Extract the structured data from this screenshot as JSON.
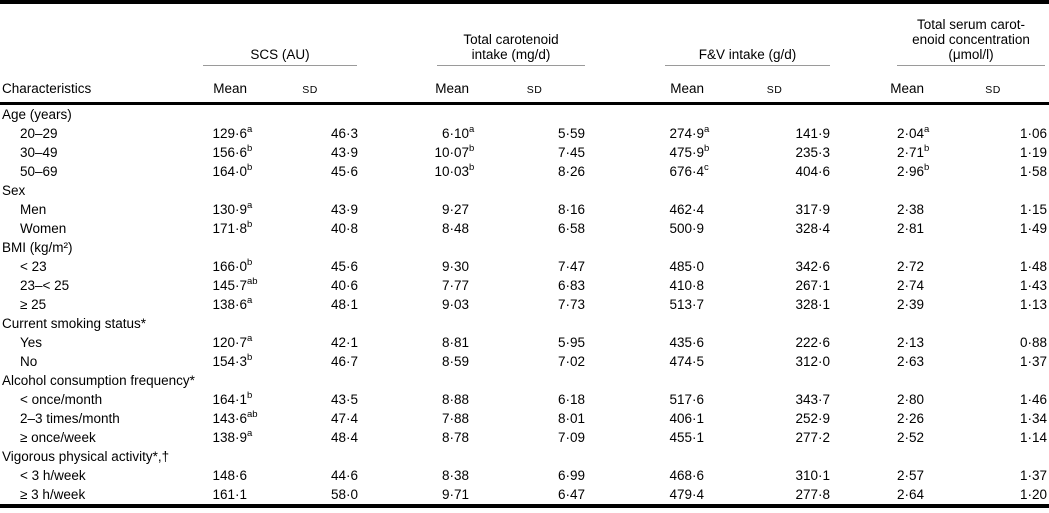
{
  "colors": {
    "text": "#000000",
    "heavy_rule": "#000000",
    "group_rule": "#9a9a9a",
    "background": "#ffffff"
  },
  "table": {
    "row_header": "Characteristics",
    "col_groups": [
      {
        "name": "scs",
        "lines": [
          "SCS (AU)"
        ]
      },
      {
        "name": "total-carotenoid-intake",
        "lines": [
          "Total carotenoid",
          "intake (mg/d)"
        ]
      },
      {
        "name": "fv-intake",
        "lines": [
          "F&V intake (g/d)"
        ]
      },
      {
        "name": "total-serum-carotenoid-concentration",
        "lines": [
          "Total serum carot-",
          "enoid concentration",
          "(μmol/l)"
        ]
      }
    ],
    "sub_headers": {
      "mean": "Mean",
      "sd": "SD"
    },
    "sections": [
      {
        "label": "Age (years)",
        "rows": [
          {
            "label": "20–29",
            "cells": [
              {
                "v": "129·6",
                "s": "a"
              },
              {
                "v": "46·3"
              },
              {
                "v": "6·10",
                "s": "a"
              },
              {
                "v": "5·59"
              },
              {
                "v": "274·9",
                "s": "a"
              },
              {
                "v": "141·9"
              },
              {
                "v": "2·04",
                "s": "a"
              },
              {
                "v": "1·06"
              }
            ]
          },
          {
            "label": "30–49",
            "cells": [
              {
                "v": "156·6",
                "s": "b"
              },
              {
                "v": "43·9"
              },
              {
                "v": "10·07",
                "s": "b"
              },
              {
                "v": "7·45"
              },
              {
                "v": "475·9",
                "s": "b"
              },
              {
                "v": "235·3"
              },
              {
                "v": "2·71",
                "s": "b"
              },
              {
                "v": "1·19"
              }
            ]
          },
          {
            "label": "50–69",
            "cells": [
              {
                "v": "164·0",
                "s": "b"
              },
              {
                "v": "45·6"
              },
              {
                "v": "10·03",
                "s": "b"
              },
              {
                "v": "8·26"
              },
              {
                "v": "676·4",
                "s": "c"
              },
              {
                "v": "404·6"
              },
              {
                "v": "2·96",
                "s": "b"
              },
              {
                "v": "1·58"
              }
            ]
          }
        ]
      },
      {
        "label": "Sex",
        "rows": [
          {
            "label": "Men",
            "cells": [
              {
                "v": "130·9",
                "s": "a"
              },
              {
                "v": "43·9"
              },
              {
                "v": "9·27"
              },
              {
                "v": "8·16"
              },
              {
                "v": "462·4"
              },
              {
                "v": "317·9"
              },
              {
                "v": "2·38"
              },
              {
                "v": "1·15"
              }
            ]
          },
          {
            "label": "Women",
            "cells": [
              {
                "v": "171·8",
                "s": "b"
              },
              {
                "v": "40·8"
              },
              {
                "v": "8·48"
              },
              {
                "v": "6·58"
              },
              {
                "v": "500·9"
              },
              {
                "v": "328·4"
              },
              {
                "v": "2·81"
              },
              {
                "v": "1·49"
              }
            ]
          }
        ]
      },
      {
        "label": "BMI (kg/m²)",
        "rows": [
          {
            "label": "< 23",
            "cells": [
              {
                "v": "166·0",
                "s": "b"
              },
              {
                "v": "45·6"
              },
              {
                "v": "9·30"
              },
              {
                "v": "7·47"
              },
              {
                "v": "485·0"
              },
              {
                "v": "342·6"
              },
              {
                "v": "2·72"
              },
              {
                "v": "1·48"
              }
            ]
          },
          {
            "label": "23–< 25",
            "cells": [
              {
                "v": "145·7",
                "s": "ab"
              },
              {
                "v": "40·6"
              },
              {
                "v": "7·77"
              },
              {
                "v": "6·83"
              },
              {
                "v": "410·8"
              },
              {
                "v": "267·1"
              },
              {
                "v": "2·74"
              },
              {
                "v": "1·43"
              }
            ]
          },
          {
            "label": "≥ 25",
            "cells": [
              {
                "v": "138·6",
                "s": "a"
              },
              {
                "v": "48·1"
              },
              {
                "v": "9·03"
              },
              {
                "v": "7·73"
              },
              {
                "v": "513·7"
              },
              {
                "v": "328·1"
              },
              {
                "v": "2·39"
              },
              {
                "v": "1·13"
              }
            ]
          }
        ]
      },
      {
        "label": "Current smoking status*",
        "rows": [
          {
            "label": "Yes",
            "cells": [
              {
                "v": "120·7",
                "s": "a"
              },
              {
                "v": "42·1"
              },
              {
                "v": "8·81"
              },
              {
                "v": "5·95"
              },
              {
                "v": "435·6"
              },
              {
                "v": "222·6"
              },
              {
                "v": "2·13"
              },
              {
                "v": "0·88"
              }
            ]
          },
          {
            "label": "No",
            "cells": [
              {
                "v": "154·3",
                "s": "b"
              },
              {
                "v": "46·7"
              },
              {
                "v": "8·59"
              },
              {
                "v": "7·02"
              },
              {
                "v": "474·5"
              },
              {
                "v": "312·0"
              },
              {
                "v": "2·63"
              },
              {
                "v": "1·37"
              }
            ]
          }
        ]
      },
      {
        "label": "Alcohol consumption frequency*",
        "rows": [
          {
            "label": "< once/month",
            "cells": [
              {
                "v": "164·1",
                "s": "b"
              },
              {
                "v": "43·5"
              },
              {
                "v": "8·88"
              },
              {
                "v": "6·18"
              },
              {
                "v": "517·6"
              },
              {
                "v": "343·7"
              },
              {
                "v": "2·80"
              },
              {
                "v": "1·46"
              }
            ]
          },
          {
            "label": "2–3 times/month",
            "cells": [
              {
                "v": "143·6",
                "s": "ab"
              },
              {
                "v": "47·4"
              },
              {
                "v": "7·88"
              },
              {
                "v": "8·01"
              },
              {
                "v": "406·1"
              },
              {
                "v": "252·9"
              },
              {
                "v": "2·26"
              },
              {
                "v": "1·34"
              }
            ]
          },
          {
            "label": "≥ once/week",
            "cells": [
              {
                "v": "138·9",
                "s": "a"
              },
              {
                "v": "48·4"
              },
              {
                "v": "8·78"
              },
              {
                "v": "7·09"
              },
              {
                "v": "455·1"
              },
              {
                "v": "277·2"
              },
              {
                "v": "2·52"
              },
              {
                "v": "1·14"
              }
            ]
          }
        ]
      },
      {
        "label": "Vigorous physical activity*,†",
        "rows": [
          {
            "label": "< 3 h/week",
            "cells": [
              {
                "v": "148·6"
              },
              {
                "v": "44·6"
              },
              {
                "v": "8·38"
              },
              {
                "v": "6·99"
              },
              {
                "v": "468·6"
              },
              {
                "v": "310·1"
              },
              {
                "v": "2·57"
              },
              {
                "v": "1·37"
              }
            ]
          },
          {
            "label": "≥ 3 h/week",
            "cells": [
              {
                "v": "161·1"
              },
              {
                "v": "58·0"
              },
              {
                "v": "9·71"
              },
              {
                "v": "6·47"
              },
              {
                "v": "479·4"
              },
              {
                "v": "277·8"
              },
              {
                "v": "2·64"
              },
              {
                "v": "1·20"
              }
            ]
          }
        ]
      }
    ]
  }
}
